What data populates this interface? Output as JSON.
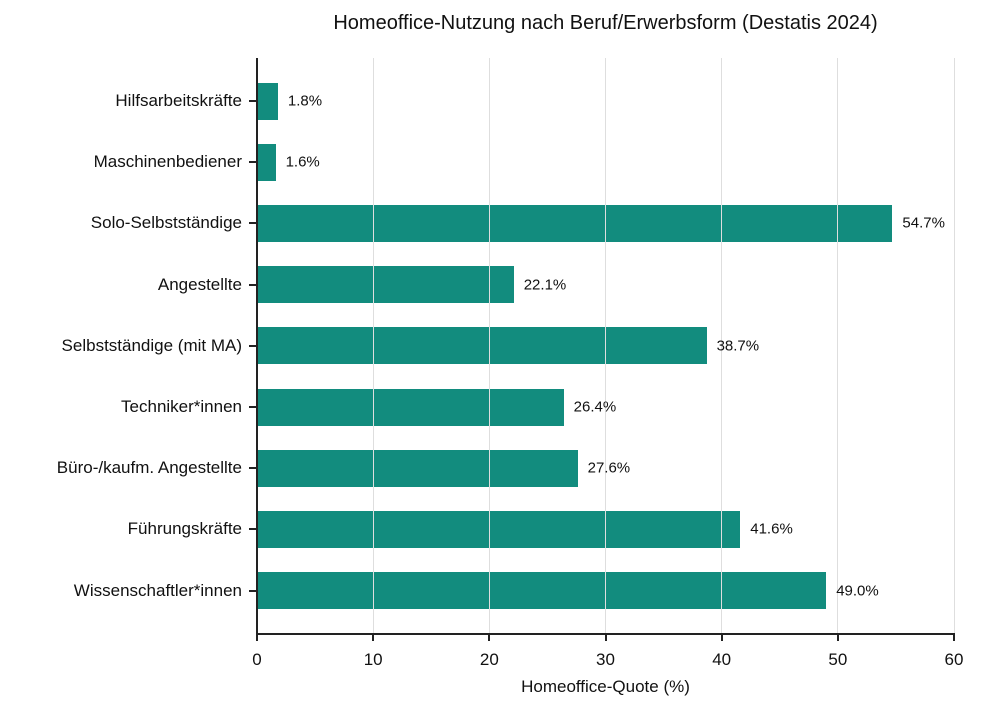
{
  "chart_data": {
    "type": "bar",
    "orientation": "horizontal",
    "title": "Homeoffice-Nutzung nach Beruf/Erwerbsform (Destatis 2024)",
    "xlabel": "Homeoffice-Quote (%)",
    "ylabel": "",
    "xlim": [
      0,
      60
    ],
    "xticks": [
      "0",
      "10",
      "20",
      "30",
      "40",
      "50",
      "60"
    ],
    "grid": "vertical",
    "bar_color": "#128c7e",
    "categories": [
      "Hilfsarbeitskräfte",
      "Maschinenbediener",
      "Solo-Selbstständige",
      "Angestellte",
      "Selbstständige (mit MA)",
      "Techniker*innen",
      "Büro-/kaufm. Angestellte",
      "Führungskräfte",
      "Wissenschaftler*innen"
    ],
    "values": [
      1.8,
      1.6,
      54.7,
      22.1,
      38.7,
      26.4,
      27.6,
      41.6,
      49.0
    ],
    "labels": [
      "1.8%",
      "1.6%",
      "54.7%",
      "22.1%",
      "38.7%",
      "26.4%",
      "27.6%",
      "41.6%",
      "49.0%"
    ]
  }
}
